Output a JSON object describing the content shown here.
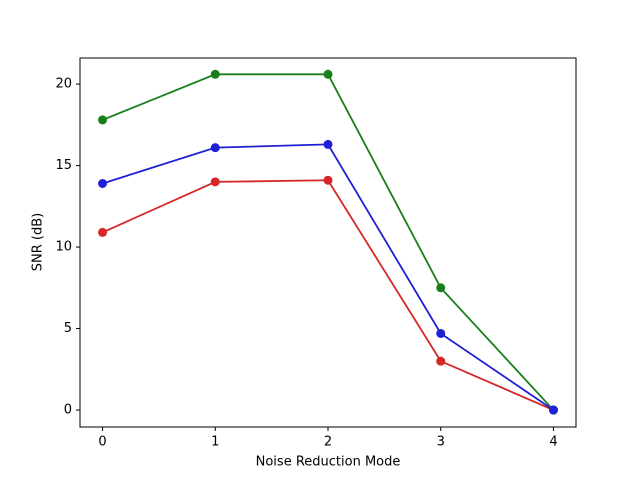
{
  "chart_data": {
    "type": "line",
    "xlabel": "Noise Reduction Mode",
    "ylabel": "SNR (dB)",
    "x": [
      0,
      1,
      2,
      3,
      4
    ],
    "series": [
      {
        "color": "#d62728",
        "values": [
          10.9,
          14.0,
          14.1,
          3.0,
          0
        ]
      },
      {
        "color": "#1a7f1a",
        "values": [
          17.8,
          20.6,
          20.6,
          7.5,
          0
        ]
      },
      {
        "color": "#1f1fd6",
        "values": [
          13.9,
          16.1,
          16.3,
          4.7,
          0
        ]
      }
    ],
    "xlim": [
      -0.2,
      4.2
    ],
    "xticks": [
      0,
      1,
      2,
      3,
      4
    ],
    "ylim": [
      -1.04,
      21.6
    ],
    "yticks": [
      0,
      5,
      10,
      15,
      20
    ],
    "grid": false
  }
}
